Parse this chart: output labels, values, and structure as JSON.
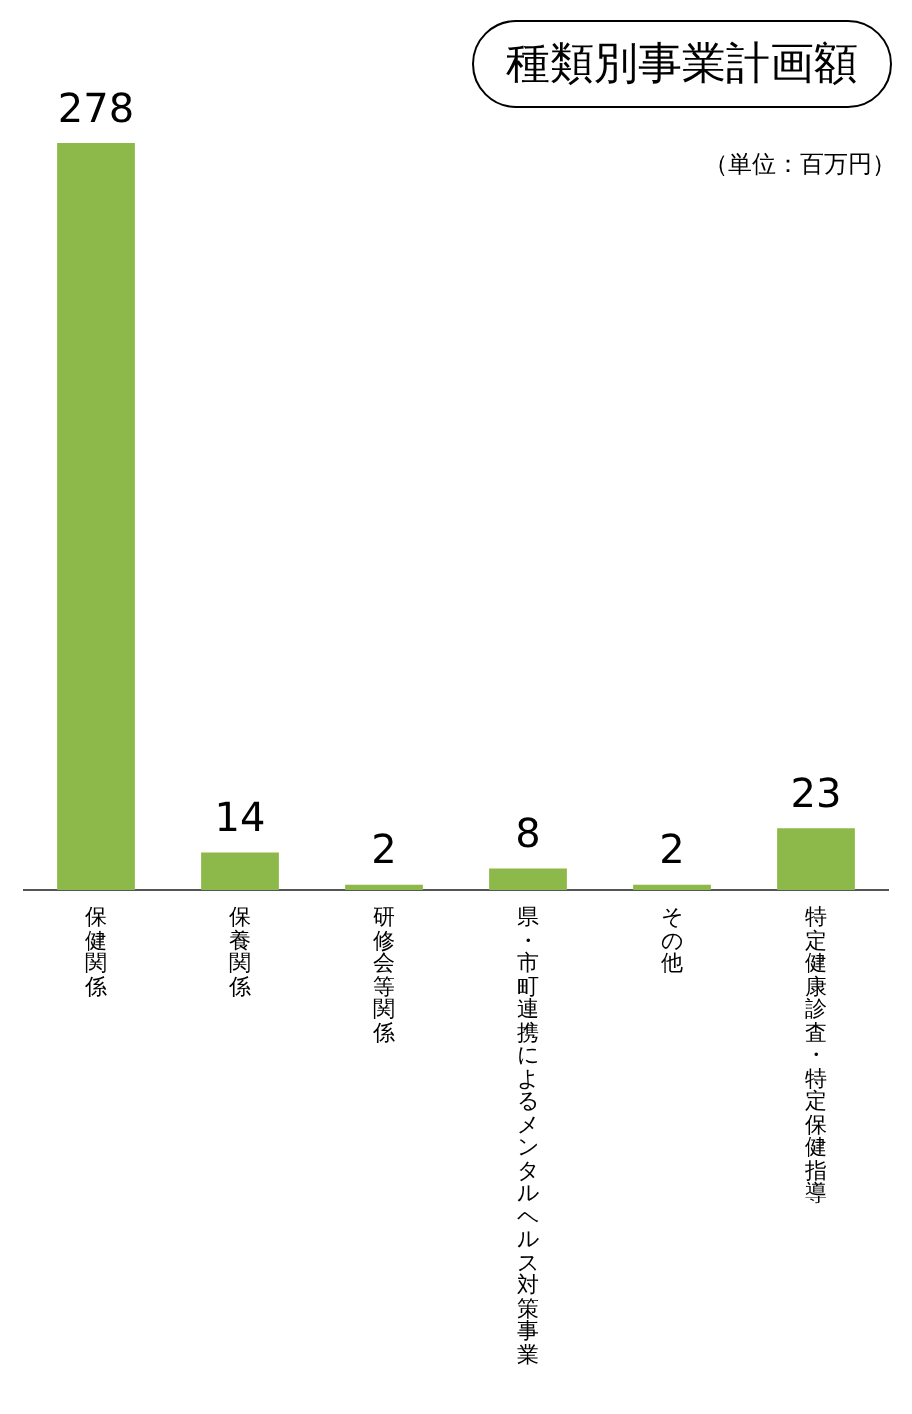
{
  "chart_data": {
    "type": "bar",
    "title": "種類別事業計画額",
    "annotations": [
      "（単位：百万円）"
    ],
    "categories": [
      "保健関係",
      "保養関係",
      "研修会等関係",
      "県・市町連携によるメンタルヘルス対策事業",
      "その他",
      "特定健康診査・特定保健指導"
    ],
    "values": [
      278,
      14,
      2,
      8,
      2,
      23
    ],
    "color": "#8db84a",
    "data_labels": true,
    "legend": false,
    "grid": false
  }
}
